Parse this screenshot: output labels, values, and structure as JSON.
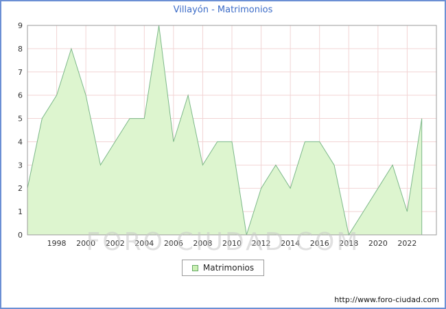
{
  "title": "Villayón - Matrimonios",
  "watermark": "FORO-CIUDAD.COM",
  "footer": {
    "url": "http://www.foro-ciudad.com"
  },
  "colors": {
    "frame_border": "#6b8fd4",
    "title": "#3b6bc7",
    "grid": "#f2d4d4",
    "plot_border": "#9a9a9a",
    "area_fill": "#ddf5cf",
    "area_line": "#7cb889",
    "legend_swatch_fill": "#ccf0b4",
    "legend_swatch_border": "#64a864",
    "tick_text": "#333333"
  },
  "chart_data": {
    "type": "area",
    "title": "Villayón - Matrimonios",
    "legend": "Matrimonios",
    "years": [
      1996,
      1997,
      1998,
      1999,
      2000,
      2001,
      2002,
      2003,
      2004,
      2005,
      2006,
      2007,
      2008,
      2009,
      2010,
      2011,
      2012,
      2013,
      2014,
      2015,
      2016,
      2017,
      2018,
      2019,
      2020,
      2021,
      2022,
      2023
    ],
    "values": [
      2,
      5,
      6,
      8,
      6,
      3,
      4,
      5,
      5,
      9,
      4,
      6,
      3,
      4,
      4,
      0,
      2,
      3,
      2,
      4,
      4,
      3,
      0,
      1,
      2,
      3,
      1,
      5
    ],
    "x_ticks": [
      1998,
      2000,
      2002,
      2004,
      2006,
      2008,
      2010,
      2012,
      2014,
      2016,
      2018,
      2020,
      2022
    ],
    "y_ticks": [
      0,
      1,
      2,
      3,
      4,
      5,
      6,
      7,
      8,
      9
    ],
    "ylim": [
      0,
      9
    ],
    "x_domain": [
      1996,
      2024
    ],
    "grid": true,
    "legend_position": "bottom-center",
    "ylabel": "",
    "xlabel": ""
  }
}
